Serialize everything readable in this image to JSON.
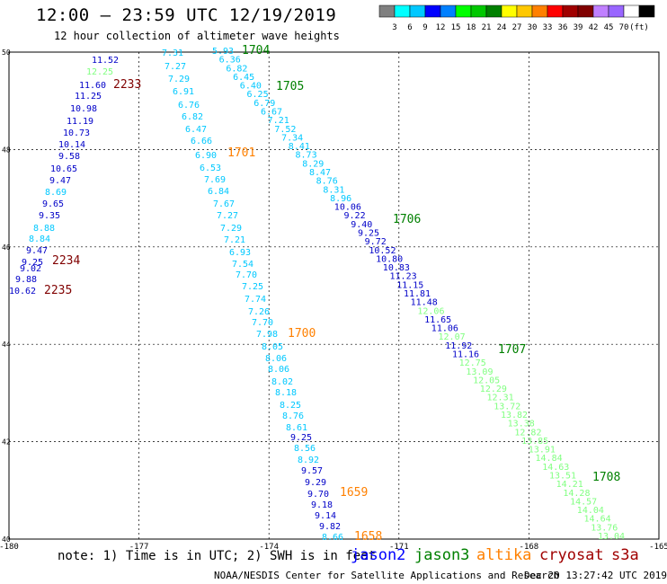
{
  "header": {
    "title": "12:00 – 23:59 UTC 12/19/2019",
    "subtitle": "12 hour collection of altimeter wave heights"
  },
  "colorbar": {
    "colors": [
      "#808080",
      "#00ffff",
      "#00c8ff",
      "#0000ff",
      "#0080ff",
      "#00ff00",
      "#00c800",
      "#008000",
      "#ffff00",
      "#ffc800",
      "#ff8000",
      "#ff0000",
      "#a00000",
      "#800000",
      "#c080ff",
      "#9966ff",
      "#ffffff",
      "#000000"
    ],
    "labels": [
      "3",
      "6",
      "9",
      "12",
      "15",
      "18",
      "21",
      "24",
      "27",
      "30",
      "33",
      "36",
      "39",
      "42",
      "45",
      "70",
      "(ft)"
    ]
  },
  "map": {
    "lon_range": [
      -180,
      -165
    ],
    "lat_range": [
      40,
      50
    ],
    "lon_ticks": [
      "-180",
      "-177",
      "-174",
      "-171",
      "-168",
      "-165"
    ],
    "lat_ticks": [
      "50",
      "48",
      "46",
      "44",
      "42",
      "40"
    ],
    "satellite_colors": {
      "jason2": "#0000ff",
      "jason3": "#008000",
      "altika": "#ff8000",
      "cryosat": "#800000",
      "s3a": "#a00000"
    },
    "value_colors": {
      "6-9": "#00c8ff",
      "9-12": "#0000c8",
      "12-15": "#80ff80",
      "15-18": "#00c000"
    },
    "tracks": [
      {
        "label": "2233",
        "label_color": "#800000",
        "values": [
          "11.52",
          "12.25",
          "11.60",
          "11.25",
          "10.98",
          "11.19",
          "10.73",
          "10.14",
          "9.58",
          "10.65",
          "9.47",
          "8.69",
          "9.65",
          "9.35",
          "8.88",
          "8.84",
          "9.47",
          "9.25",
          "9.02",
          "9.88",
          "10.62"
        ]
      },
      {
        "label": "2234",
        "label_color": "#800000",
        "values": []
      },
      {
        "label": "2235",
        "label_color": "#800000",
        "values": []
      },
      {
        "label": "1701",
        "label_color": "#ff8000",
        "values": [
          "7.31",
          "7.27",
          "7.29",
          "6.91",
          "6.76",
          "6.82",
          "6.47",
          "6.66",
          "6.90",
          "6.53",
          "7.69",
          "6.84",
          "7.67",
          "7.27",
          "7.29",
          "7.21",
          "6.93",
          "7.54",
          "7.70",
          "7.25",
          "7.74",
          "7.26",
          "7.70",
          "7.98",
          "8.05",
          "8.06",
          "8.06",
          "8.02",
          "8.18",
          "8.25",
          "8.76",
          "8.61",
          "9.25",
          "8.56",
          "8.92",
          "9.57",
          "9.29",
          "9.70",
          "9.18",
          "9.14",
          "9.82",
          "8.66"
        ]
      },
      {
        "label": "1700",
        "label_color": "#ff8000",
        "values": []
      },
      {
        "label": "1659",
        "label_color": "#ff8000",
        "values": []
      },
      {
        "label": "1658",
        "label_color": "#ff8000",
        "values": []
      },
      {
        "label": "1704",
        "label_color": "#008000",
        "values": [
          "5.93",
          "6.36",
          "6.82",
          "6.45",
          "6.40",
          "6.25",
          "6.79",
          "6.67",
          "7.21",
          "7.52",
          "7.34",
          "8.41",
          "8.73",
          "8.29",
          "8.47",
          "8.76",
          "8.31",
          "8.96",
          "10.06",
          "9.22",
          "9.40",
          "9.25",
          "9.72",
          "10.52",
          "10.80",
          "10.83",
          "11.23",
          "11.15",
          "11.81",
          "11.48",
          "12.06",
          "11.65",
          "11.06",
          "12.07",
          "11.92",
          "11.16",
          "12.75",
          "13.09",
          "12.05",
          "12.29",
          "12.31",
          "13.72",
          "13.82",
          "13.38",
          "12.82",
          "13.85",
          "13.91",
          "14.84",
          "14.63",
          "13.51",
          "14.21",
          "14.28",
          "14.57",
          "14.04",
          "14.64",
          "13.76",
          "13.04"
        ]
      },
      {
        "label": "1705",
        "label_color": "#008000",
        "values": []
      },
      {
        "label": "1706",
        "label_color": "#008000",
        "values": []
      },
      {
        "label": "1707",
        "label_color": "#008000",
        "values": []
      },
      {
        "label": "1708",
        "label_color": "#008000",
        "values": []
      }
    ]
  },
  "note": "note: 1) Time is in UTC; 2) SWH is in feet",
  "legend": {
    "jason2": "jason2",
    "jason3": "jason3",
    "altika": "altika",
    "cryosat": "cryosat",
    "s3a": "s3a"
  },
  "footer": {
    "credit": "NOAA/NESDIS Center for Satellite Applications and Research",
    "timestamp": "Dec 20 13:27:42 UTC 2019"
  }
}
